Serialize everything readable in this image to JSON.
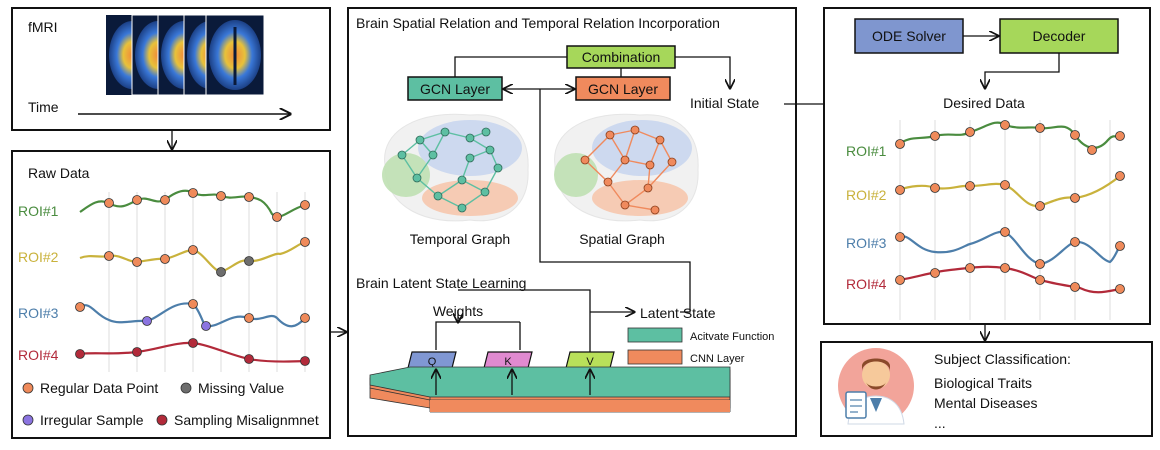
{
  "fmri_panel": {
    "title": "fMRI",
    "time_label": "Time"
  },
  "raw_panel": {
    "title": "Raw Data",
    "rois": [
      {
        "label": "ROI#1",
        "color": "#4a8c3f"
      },
      {
        "label": "ROI#2",
        "color": "#c9b23c"
      },
      {
        "label": "ROI#3",
        "color": "#4d7eaa"
      },
      {
        "label": "ROI#4",
        "color": "#b22a3a"
      }
    ],
    "legend": [
      {
        "label": "Regular Data Point",
        "color": "#ef8a5a"
      },
      {
        "label": "Missing Value",
        "color": "#6d6d6d"
      },
      {
        "label": "Irregular Sample",
        "color": "#8b74e0"
      },
      {
        "label": "Sampling Misalignmnet",
        "color": "#b22a3a"
      }
    ]
  },
  "center_panel": {
    "title": "Brain Spatial Relation and Temporal Relation Incorporation",
    "combination": "Combination",
    "gcn_left": "GCN Layer",
    "gcn_right": "GCN Layer",
    "initial_state": "Initial State",
    "temporal_graph": "Temporal Graph",
    "spatial_graph": "Spatial Graph",
    "latent_title": "Brain Latent State Learning",
    "weights": "Weights",
    "latent_state": "Latent State",
    "q": "Q",
    "k": "K",
    "v": "V",
    "legend_activate": "Acitvate Function",
    "legend_cnn": "CNN Layer"
  },
  "right_panel": {
    "ode_solver": "ODE Solver",
    "decoder": "Decoder",
    "desired_data": "Desired Data",
    "rois": [
      "ROI#1",
      "ROI#2",
      "ROI#3",
      "ROI#4"
    ]
  },
  "classification": {
    "title": "Subject Classification:",
    "items": [
      "Biological Traits",
      "Mental Diseases",
      "..."
    ]
  },
  "colors": {
    "teal": "#5dbfa2",
    "orange": "#f08a5d",
    "lime": "#a6d75a",
    "blue_box": "#7f96cf",
    "q_box": "#8097d3",
    "k_box": "#e08ad0",
    "v_box": "#b9e05a"
  }
}
